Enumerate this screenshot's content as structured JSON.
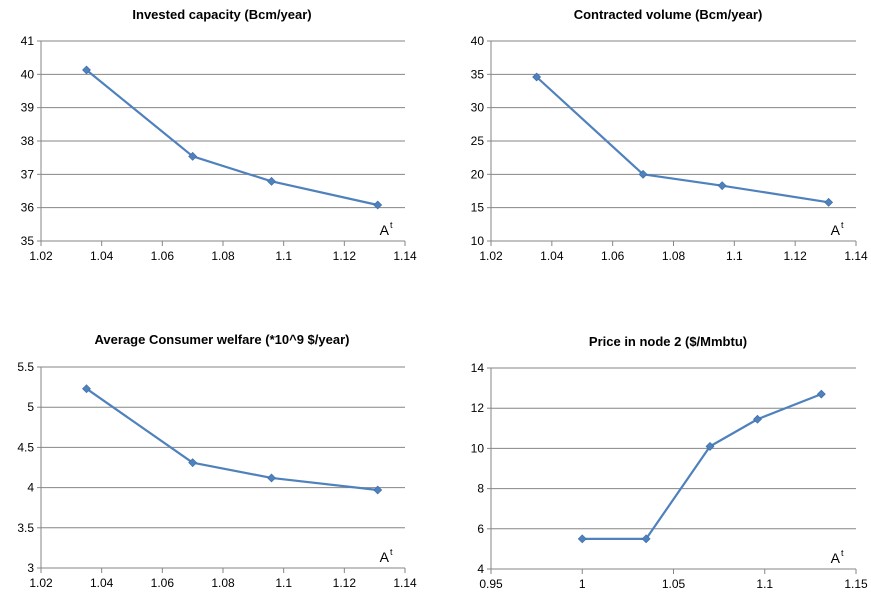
{
  "chart_data": [
    {
      "type": "line",
      "title": "Invested capacity  (Bcm/year)",
      "xlabel": "A",
      "xlabel_sup": "t",
      "ylabel": "",
      "xlim": [
        1.02,
        1.14
      ],
      "ylim": [
        35,
        41
      ],
      "x_ticks": [
        "1.02",
        "1.04",
        "1.06",
        "1.08",
        "1.1",
        "1.12",
        "1.14"
      ],
      "y_ticks": [
        "35",
        "36",
        "37",
        "38",
        "39",
        "40",
        "41"
      ],
      "grid": true,
      "series": [
        {
          "x": [
            1.035,
            1.07,
            1.096,
            1.131
          ],
          "values": [
            40.13,
            37.54,
            36.79,
            36.08
          ]
        }
      ],
      "colors": {
        "line": "#4f81bd",
        "grid": "#868686"
      }
    },
    {
      "type": "line",
      "title": "Contracted volume (Bcm/year)",
      "xlabel": "A",
      "xlabel_sup": "t",
      "ylabel": "",
      "xlim": [
        1.02,
        1.14
      ],
      "ylim": [
        10,
        40
      ],
      "x_ticks": [
        "1.02",
        "1.04",
        "1.06",
        "1.08",
        "1.1",
        "1.12",
        "1.14"
      ],
      "y_ticks": [
        "10",
        "15",
        "20",
        "25",
        "30",
        "35",
        "40"
      ],
      "grid": true,
      "series": [
        {
          "x": [
            1.035,
            1.07,
            1.096,
            1.131
          ],
          "values": [
            34.6,
            20.0,
            18.3,
            15.8
          ]
        }
      ],
      "colors": {
        "line": "#4f81bd",
        "grid": "#868686"
      }
    },
    {
      "type": "line",
      "title": "Average Consumer welfare (*10^9 $/year)",
      "xlabel": "A",
      "xlabel_sup": "t",
      "ylabel": "",
      "xlim": [
        1.02,
        1.14
      ],
      "ylim": [
        3,
        5.5
      ],
      "x_ticks": [
        "1.02",
        "1.04",
        "1.06",
        "1.08",
        "1.1",
        "1.12",
        "1.14"
      ],
      "y_ticks": [
        "3",
        "3.5",
        "4",
        "4.5",
        "5",
        "5.5"
      ],
      "grid": true,
      "series": [
        {
          "x": [
            1.035,
            1.07,
            1.096,
            1.131
          ],
          "values": [
            5.23,
            4.31,
            4.12,
            3.97
          ]
        }
      ],
      "colors": {
        "line": "#4f81bd",
        "grid": "#868686"
      }
    },
    {
      "type": "line",
      "title": "Price in node 2 ($/Mmbtu)",
      "xlabel": "A",
      "xlabel_sup": "t",
      "ylabel": "",
      "xlim": [
        0.95,
        1.15
      ],
      "ylim": [
        4,
        14
      ],
      "x_ticks": [
        "0.95",
        "1",
        "1.05",
        "1.1",
        "1.15"
      ],
      "y_ticks": [
        "4",
        "6",
        "8",
        "10",
        "12",
        "14"
      ],
      "grid": true,
      "series": [
        {
          "x": [
            1.0,
            1.035,
            1.07,
            1.096,
            1.131
          ],
          "values": [
            5.5,
            5.5,
            10.1,
            11.45,
            12.7
          ]
        }
      ],
      "colors": {
        "line": "#4f81bd",
        "grid": "#868686"
      }
    }
  ]
}
